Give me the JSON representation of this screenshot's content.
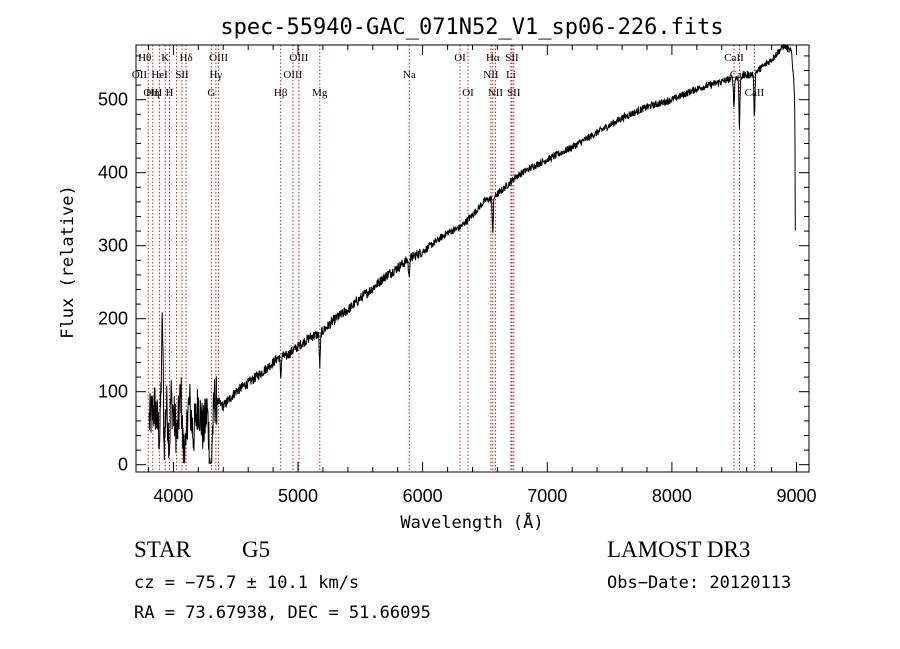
{
  "chart_data": {
    "type": "line",
    "title": "spec-55940-GAC_071N52_V1_sp06-226.fits",
    "xlabel": "Wavelength (Å)",
    "ylabel": "Flux (relative)",
    "xlim": [
      3700,
      9100
    ],
    "ylim": [
      -10,
      575
    ],
    "xticks": [
      4000,
      5000,
      6000,
      7000,
      8000,
      9000
    ],
    "yticks": [
      0,
      100,
      200,
      300,
      400,
      500
    ],
    "grid": false,
    "colors": {
      "spectrum": "#000000",
      "line_marker": "#b22222",
      "axes": "#000000"
    },
    "spectrum_anchors": [
      [
        3805,
        60
      ],
      [
        3850,
        80
      ],
      [
        3890,
        40
      ],
      [
        3900,
        95
      ],
      [
        3912,
        205
      ],
      [
        3925,
        30
      ],
      [
        3935,
        105
      ],
      [
        3960,
        50
      ],
      [
        3980,
        95
      ],
      [
        4000,
        70
      ],
      [
        4030,
        40
      ],
      [
        4060,
        100
      ],
      [
        4080,
        15
      ],
      [
        4100,
        60
      ],
      [
        4130,
        85
      ],
      [
        4160,
        40
      ],
      [
        4200,
        85
      ],
      [
        4240,
        45
      ],
      [
        4270,
        75
      ],
      [
        4300,
        5
      ],
      [
        4330,
        90
      ],
      [
        4400,
        80
      ],
      [
        4500,
        100
      ],
      [
        4600,
        112
      ],
      [
        4700,
        125
      ],
      [
        4800,
        140
      ],
      [
        4860,
        150
      ],
      [
        4900,
        148
      ],
      [
        5000,
        162
      ],
      [
        5100,
        175
      ],
      [
        5180,
        180
      ],
      [
        5300,
        200
      ],
      [
        5400,
        212
      ],
      [
        5500,
        228
      ],
      [
        5600,
        242
      ],
      [
        5700,
        258
      ],
      [
        5800,
        270
      ],
      [
        5890,
        282
      ],
      [
        6000,
        292
      ],
      [
        6100,
        305
      ],
      [
        6200,
        318
      ],
      [
        6300,
        325
      ],
      [
        6400,
        342
      ],
      [
        6500,
        362
      ],
      [
        6560,
        365
      ],
      [
        6650,
        378
      ],
      [
        6750,
        395
      ],
      [
        6900,
        410
      ],
      [
        7000,
        418
      ],
      [
        7200,
        435
      ],
      [
        7400,
        455
      ],
      [
        7600,
        475
      ],
      [
        7800,
        490
      ],
      [
        8000,
        500
      ],
      [
        8200,
        515
      ],
      [
        8400,
        525
      ],
      [
        8500,
        530
      ],
      [
        8650,
        535
      ],
      [
        8800,
        555
      ],
      [
        8900,
        575
      ],
      [
        8960,
        565
      ],
      [
        8990,
        500
      ]
    ],
    "spectrum_dips": [
      [
        3934,
        45
      ],
      [
        3969,
        40
      ],
      [
        4101,
        55
      ],
      [
        4300,
        60
      ],
      [
        4861,
        30
      ],
      [
        5175,
        45
      ],
      [
        5890,
        25
      ],
      [
        6563,
        45
      ],
      [
        8498,
        40
      ],
      [
        8542,
        70
      ],
      [
        8662,
        60
      ],
      [
        8995,
        350
      ]
    ],
    "lines": [
      {
        "w": 3798,
        "labels": []
      },
      {
        "w": 3835,
        "labels": []
      },
      {
        "w": 3889,
        "labels": []
      },
      {
        "w": 3934,
        "labels": []
      },
      {
        "w": 3969,
        "labels": []
      },
      {
        "w": 4026,
        "labels": []
      },
      {
        "w": 4069,
        "labels": []
      },
      {
        "w": 4102,
        "labels": []
      },
      {
        "w": 4305,
        "labels": []
      },
      {
        "w": 4341,
        "labels": []
      },
      {
        "w": 4363,
        "labels": []
      },
      {
        "w": 4861,
        "labels": []
      },
      {
        "w": 4959,
        "labels": []
      },
      {
        "w": 5007,
        "labels": []
      },
      {
        "w": 5175,
        "labels": []
      },
      {
        "w": 5893,
        "labels": []
      },
      {
        "w": 6300,
        "labels": []
      },
      {
        "w": 6364,
        "labels": []
      },
      {
        "w": 6548,
        "labels": []
      },
      {
        "w": 6563,
        "labels": []
      },
      {
        "w": 6584,
        "labels": []
      },
      {
        "w": 6708,
        "labels": []
      },
      {
        "w": 6717,
        "labels": []
      },
      {
        "w": 6731,
        "labels": []
      },
      {
        "w": 8498,
        "labels": []
      },
      {
        "w": 8542,
        "labels": []
      },
      {
        "w": 8662,
        "labels": []
      }
    ],
    "line_labels": [
      {
        "text": "Hθ",
        "w": 3770,
        "row": 0
      },
      {
        "text": "K",
        "w": 3934,
        "row": 0
      },
      {
        "text": "Hδ",
        "w": 4102,
        "row": 0
      },
      {
        "text": "OIII",
        "w": 4363,
        "row": 0
      },
      {
        "text": "OIII",
        "w": 5007,
        "row": 0
      },
      {
        "text": "OI",
        "w": 6300,
        "row": 0
      },
      {
        "text": "Hα",
        "w": 6563,
        "row": 0
      },
      {
        "text": "SII",
        "w": 6717,
        "row": 0
      },
      {
        "text": "CaII",
        "w": 8498,
        "row": 0
      },
      {
        "text": "OII",
        "w": 3727,
        "row": 1
      },
      {
        "text": "HeI",
        "w": 3889,
        "row": 1
      },
      {
        "text": "SII",
        "w": 4069,
        "row": 1
      },
      {
        "text": "Hγ",
        "w": 4341,
        "row": 1
      },
      {
        "text": "OIII",
        "w": 4959,
        "row": 1
      },
      {
        "text": "Na",
        "w": 5893,
        "row": 1
      },
      {
        "text": "NII",
        "w": 6548,
        "row": 1
      },
      {
        "text": "Li",
        "w": 6708,
        "row": 1
      },
      {
        "text": "CaII",
        "w": 8542,
        "row": 1
      },
      {
        "text": "OIII",
        "w": 3835,
        "row": 2
      },
      {
        "text": "Hη",
        "w": 3835,
        "row": 2
      },
      {
        "text": "H",
        "w": 3969,
        "row": 2
      },
      {
        "text": "G",
        "w": 4305,
        "row": 2
      },
      {
        "text": "Hβ",
        "w": 4861,
        "row": 2
      },
      {
        "text": "Mg",
        "w": 5175,
        "row": 2
      },
      {
        "text": "OI",
        "w": 6364,
        "row": 2
      },
      {
        "text": "NII",
        "w": 6584,
        "row": 2
      },
      {
        "text": "SII",
        "w": 6731,
        "row": 2
      },
      {
        "text": "CaII",
        "w": 8662,
        "row": 2
      }
    ]
  },
  "info": {
    "object_class": "STAR",
    "subclass": "G5",
    "survey": "LAMOST DR3",
    "cz": "cz = −75.7 ± 10.1 km/s",
    "obs_date": "Obs−Date: 20120113",
    "radec": "RA =  73.67938, DEC =  51.66095"
  }
}
